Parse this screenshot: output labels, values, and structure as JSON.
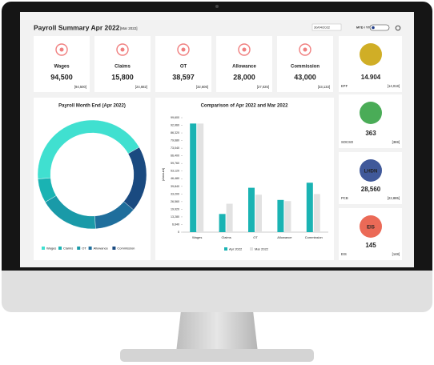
{
  "header": {
    "title": "Payroll Summary Apr 2022",
    "compare": "[Mar 2022]",
    "date": "30/04/2022",
    "toggle": "MTD / YTD"
  },
  "cards": [
    {
      "label": "Wages",
      "value": "94,500",
      "previous": "[94,500]"
    },
    {
      "label": "Claims",
      "value": "15,800",
      "previous": "[24,682]"
    },
    {
      "label": "OT",
      "value": "38,597",
      "previous": "[32,606]"
    },
    {
      "label": "Allowance",
      "value": "28,000",
      "previous": "[27,025]"
    },
    {
      "label": "Commission",
      "value": "43,000",
      "previous": "[33,133]"
    }
  ],
  "side_cards": [
    {
      "label": "EPF",
      "value": "14.904",
      "previous": "[14,018]"
    },
    {
      "label": "SOCSO",
      "value": "363",
      "previous": "[369]"
    },
    {
      "label": "PCB",
      "value": "28,560",
      "previous": "[22,885]",
      "logo": "LHDN"
    },
    {
      "label": "EIS",
      "value": "145",
      "previous": "[148]",
      "logo": "EIS"
    }
  ],
  "chart_data": [
    {
      "type": "pie",
      "title": "Payroll Month End (Apr 2022)",
      "categories": [
        "Wages",
        "Claims",
        "OT",
        "Allowance",
        "Commission"
      ],
      "values": [
        94500,
        15800,
        38597,
        28000,
        43000
      ],
      "colors": [
        "#40e0d0",
        "#1ab3b3",
        "#1a9aa8",
        "#1f6e9c",
        "#1a4a80"
      ],
      "donut": true,
      "legend": "bottom"
    },
    {
      "type": "bar",
      "title": "Comparison of Apr 2022 and Mar 2022",
      "ylabel": "(Amount)",
      "categories": [
        "Wages",
        "Claims",
        "OT",
        "Allowance",
        "Commission"
      ],
      "series": [
        {
          "name": "Apr 2022",
          "color": "#1ab3b3",
          "values": [
            94500,
            15800,
            38597,
            28000,
            43000
          ]
        },
        {
          "name": "Mar 2022",
          "color": "#e2e2e2",
          "values": [
            94500,
            24682,
            32606,
            27025,
            33133
          ]
        }
      ],
      "ylim": [
        0,
        99600
      ],
      "yticks": [
        0,
        {
          "value": 6640,
          "label": "6,640"
        },
        {
          "value": 13280,
          "label": "13,280"
        },
        {
          "value": 19920,
          "label": "19,920"
        },
        {
          "value": 26560,
          "label": "26,560"
        },
        {
          "value": 33200,
          "label": "33,200"
        },
        {
          "value": 39840,
          "label": "39,840"
        },
        {
          "value": 46480,
          "label": "46,480"
        },
        {
          "value": 53120,
          "label": "53,120"
        },
        {
          "value": 59760,
          "label": "59,760"
        },
        {
          "value": 66400,
          "label": "66,400"
        },
        {
          "value": 73040,
          "label": "73,040"
        },
        {
          "value": 79680,
          "label": "79,680"
        },
        {
          "value": 86320,
          "label": "86,320"
        },
        {
          "value": 92960,
          "label": "92,960"
        },
        {
          "value": 99600,
          "label": "99,600"
        }
      ],
      "grid": false,
      "legend": "bottom"
    }
  ]
}
